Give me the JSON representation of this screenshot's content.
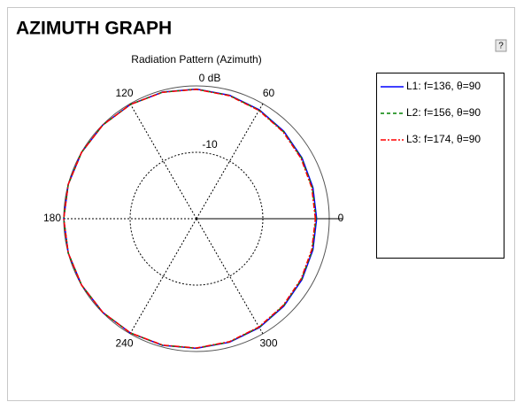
{
  "header": {
    "title": "AZIMUTH GRAPH",
    "help": "?"
  },
  "chart_data": {
    "type": "polar",
    "title": "Radiation Pattern (Azimuth)",
    "theta": [
      0,
      15,
      30,
      45,
      60,
      75,
      90,
      105,
      120,
      135,
      150,
      165,
      180,
      195,
      210,
      225,
      240,
      255,
      270,
      285,
      300,
      315,
      330,
      345
    ],
    "thetaticks": [
      0,
      60,
      120,
      180,
      240,
      300
    ],
    "rlim": [
      -20,
      0
    ],
    "rticks": [
      -10,
      {
        "value": 0,
        "label": "0 dB"
      }
    ],
    "grid": true,
    "series": [
      {
        "name": "L1: f=136, θ=90",
        "color": "#0000ff",
        "linestyle": "solid",
        "values": [
          -1.9,
          -1.84,
          -1.65,
          -1.39,
          -1.07,
          -0.75,
          -0.48,
          -0.26,
          -0.12,
          -0.04,
          -0.01,
          0,
          0,
          0,
          -0.01,
          -0.04,
          -0.12,
          -0.26,
          -0.48,
          -0.75,
          -1.07,
          -1.39,
          -1.65,
          -1.84
        ]
      },
      {
        "name": "L2: f=156, θ=90",
        "color": "#008000",
        "linestyle": "dashed",
        "values": [
          -2.0,
          -1.93,
          -1.73,
          -1.46,
          -1.12,
          -0.79,
          -0.5,
          -0.27,
          -0.13,
          -0.04,
          -0.01,
          0,
          0,
          0,
          -0.01,
          -0.04,
          -0.13,
          -0.27,
          -0.5,
          -0.79,
          -1.12,
          -1.46,
          -1.73,
          -1.93
        ]
      },
      {
        "name": "L3: f=174, θ=90",
        "color": "#ff0000",
        "linestyle": "dashdot",
        "values": [
          -2.09,
          -2.02,
          -1.82,
          -1.53,
          -1.18,
          -0.83,
          -0.53,
          -0.29,
          -0.13,
          -0.04,
          -0.01,
          0,
          0,
          0,
          -0.01,
          -0.04,
          -0.13,
          -0.29,
          -0.53,
          -0.83,
          -1.18,
          -1.53,
          -1.82,
          -2.02
        ]
      }
    ]
  }
}
